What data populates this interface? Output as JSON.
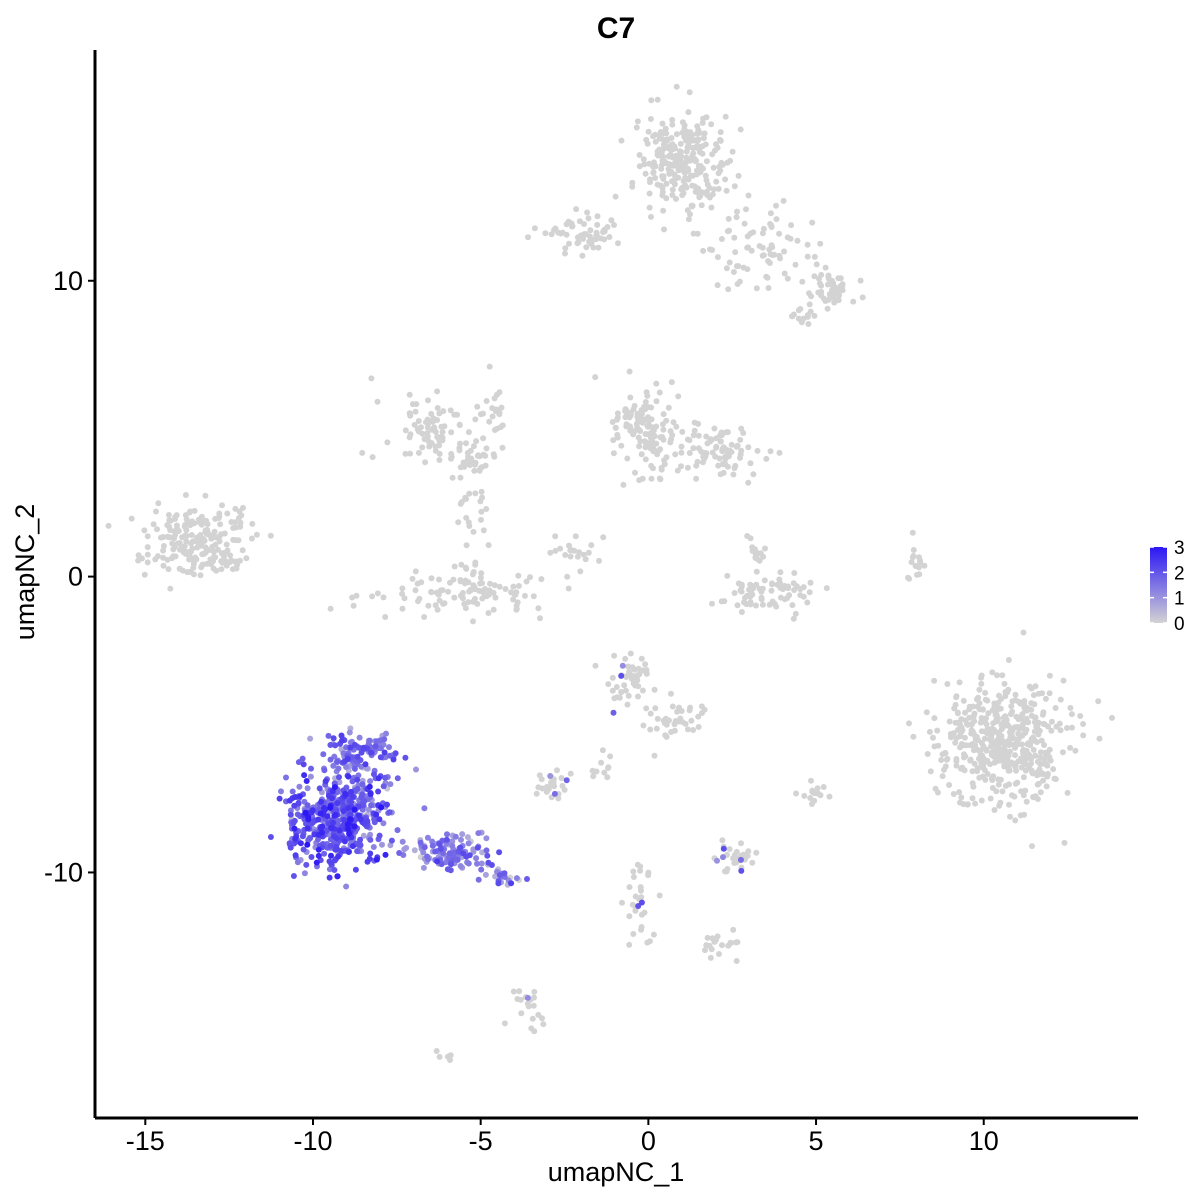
{
  "chart_data": {
    "type": "scatter",
    "title": "C7",
    "xlabel": "umapNC_1",
    "ylabel": "umapNC_2",
    "xlim": [
      -16.5,
      14.6
    ],
    "ylim": [
      -18.3,
      17.8
    ],
    "x_ticks": [
      -15,
      -10,
      -5,
      0,
      5,
      10
    ],
    "x_tick_labels": [
      "-15",
      "-10",
      "-5",
      "0",
      "5",
      "10"
    ],
    "y_ticks": [
      -10,
      0,
      10
    ],
    "y_tick_labels": [
      "-10",
      "0",
      "10"
    ],
    "grid": false,
    "legend": {
      "position": "right",
      "type": "colorbar",
      "labels": [
        "3",
        "2",
        "1",
        "0"
      ],
      "values": [
        3,
        2,
        1,
        0
      ],
      "low_color": "#d3d3d3",
      "high_color": "#2b16f5"
    },
    "clusters": [
      {
        "center": [
          1.0,
          14.0
        ],
        "spread": [
          0.9,
          1.1
        ],
        "n": 260,
        "expr": 0
      },
      {
        "center": [
          -2.0,
          11.6
        ],
        "spread": [
          0.7,
          0.4
        ],
        "n": 60,
        "expr": 0
      },
      {
        "center": [
          3.5,
          11.0
        ],
        "spread": [
          1.0,
          0.9
        ],
        "n": 70,
        "expr": 0
      },
      {
        "center": [
          5.5,
          9.6
        ],
        "spread": [
          0.4,
          0.4
        ],
        "n": 50,
        "expr": 0
      },
      {
        "center": [
          4.7,
          8.9
        ],
        "spread": [
          0.3,
          0.3
        ],
        "n": 15,
        "expr": 0
      },
      {
        "center": [
          -6.5,
          5.0
        ],
        "spread": [
          1.0,
          0.7
        ],
        "n": 80,
        "expr": 0
      },
      {
        "center": [
          -5.3,
          3.8
        ],
        "spread": [
          0.4,
          0.3
        ],
        "n": 30,
        "expr": 0
      },
      {
        "center": [
          -4.5,
          5.5
        ],
        "spread": [
          0.3,
          1.2
        ],
        "n": 20,
        "expr": 0
      },
      {
        "center": [
          0.0,
          5.0
        ],
        "spread": [
          0.8,
          1.1
        ],
        "n": 130,
        "expr": 0
      },
      {
        "center": [
          2.2,
          4.3
        ],
        "spread": [
          0.9,
          0.6
        ],
        "n": 80,
        "expr": 0
      },
      {
        "center": [
          -13.5,
          1.2
        ],
        "spread": [
          1.0,
          0.8
        ],
        "n": 200,
        "expr": 0
      },
      {
        "center": [
          -12.5,
          0.5
        ],
        "spread": [
          0.3,
          0.3
        ],
        "n": 15,
        "expr": 0
      },
      {
        "center": [
          -5.5,
          -0.5
        ],
        "spread": [
          1.6,
          0.5
        ],
        "n": 110,
        "expr": 0
      },
      {
        "center": [
          -5.2,
          2.0
        ],
        "spread": [
          0.3,
          0.8
        ],
        "n": 20,
        "expr": 0
      },
      {
        "center": [
          -2.0,
          0.8
        ],
        "spread": [
          0.8,
          0.4
        ],
        "n": 20,
        "expr": 0
      },
      {
        "center": [
          3.5,
          -0.5
        ],
        "spread": [
          0.9,
          0.5
        ],
        "n": 70,
        "expr": 0
      },
      {
        "center": [
          3.3,
          0.9
        ],
        "spread": [
          0.3,
          0.4
        ],
        "n": 15,
        "expr": 0
      },
      {
        "center": [
          8.0,
          0.3
        ],
        "spread": [
          0.2,
          0.6
        ],
        "n": 15,
        "expr": 0
      },
      {
        "center": [
          10.5,
          -5.5
        ],
        "spread": [
          1.3,
          1.4
        ],
        "n": 480,
        "expr": 0
      },
      {
        "center": [
          -0.5,
          -3.5
        ],
        "spread": [
          0.5,
          0.6
        ],
        "n": 50,
        "expr": 0.05
      },
      {
        "center": [
          0.8,
          -4.8
        ],
        "spread": [
          0.7,
          0.6
        ],
        "n": 40,
        "expr": 0
      },
      {
        "center": [
          -2.8,
          -7.0
        ],
        "spread": [
          0.4,
          0.3
        ],
        "n": 25,
        "expr": 0.05
      },
      {
        "center": [
          -1.5,
          -6.3
        ],
        "spread": [
          0.3,
          0.4
        ],
        "n": 10,
        "expr": 0
      },
      {
        "center": [
          2.5,
          -9.5
        ],
        "spread": [
          0.4,
          0.3
        ],
        "n": 35,
        "expr": 0.05
      },
      {
        "center": [
          5.0,
          -7.3
        ],
        "spread": [
          0.3,
          0.3
        ],
        "n": 15,
        "expr": 0
      },
      {
        "center": [
          -0.3,
          -11.0
        ],
        "spread": [
          0.3,
          0.9
        ],
        "n": 30,
        "expr": 0.05
      },
      {
        "center": [
          2.2,
          -12.5
        ],
        "spread": [
          0.4,
          0.3
        ],
        "n": 20,
        "expr": 0
      },
      {
        "center": [
          -3.6,
          -14.7
        ],
        "spread": [
          0.3,
          0.6
        ],
        "n": 20,
        "expr": 0.05
      },
      {
        "center": [
          -6.0,
          -16.2
        ],
        "spread": [
          0.2,
          0.2
        ],
        "n": 5,
        "expr": 0
      },
      {
        "center": [
          -9.3,
          -8.2
        ],
        "spread": [
          1.0,
          1.1
        ],
        "n": 520,
        "expr": 1.9
      },
      {
        "center": [
          -8.6,
          -6.0
        ],
        "spread": [
          0.7,
          0.5
        ],
        "n": 120,
        "expr": 1.6
      },
      {
        "center": [
          -5.8,
          -9.3
        ],
        "spread": [
          0.9,
          0.4
        ],
        "n": 110,
        "expr": 1.4
      },
      {
        "center": [
          -4.3,
          -10.2
        ],
        "spread": [
          0.5,
          0.2
        ],
        "n": 25,
        "expr": 1.2
      }
    ]
  }
}
